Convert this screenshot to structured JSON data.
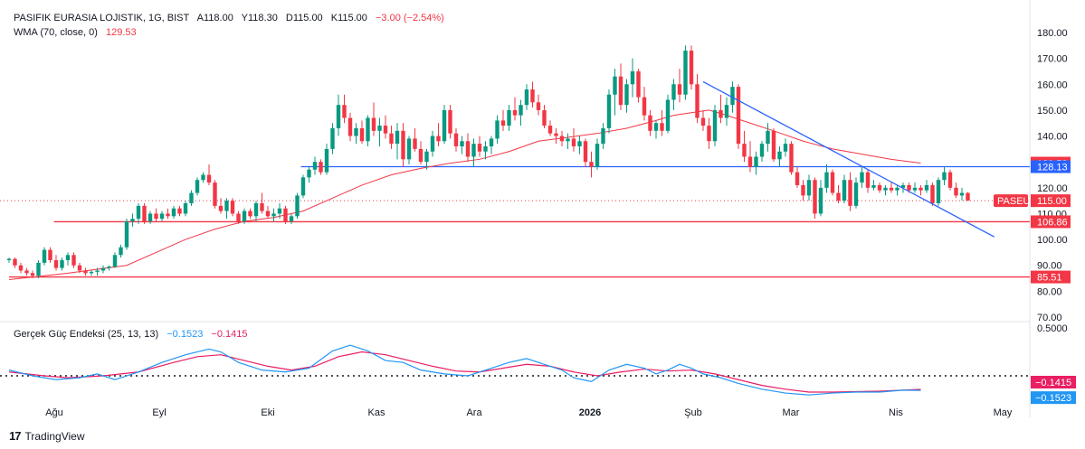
{
  "header": {
    "symbol": "PASIFIK EURASIA LOJISTIK, 1G, BIST",
    "open": "A118.00",
    "high": "Y118.30",
    "low": "D115.00",
    "close": "K115.00",
    "change": "−3.00 (−2.54%)",
    "wma_label": "WMA (70, close, 0)",
    "wma_value": "129.53",
    "tsi_label": "Gerçek Güç Endeksi (25, 13, 13)",
    "tsi_value": "−0.1523",
    "tsi_signal": "−0.1415"
  },
  "footer": {
    "brand": "TradingView",
    "logo": "17"
  },
  "colors": {
    "up": "#089981",
    "down": "#f23645",
    "wma": "#f23645",
    "hline_blue": "#2962ff",
    "hline_red": "#f23645",
    "tsi": "#2196f3",
    "tsi_signal": "#e91e63"
  },
  "chart_data": {
    "type": "candlestick",
    "title": "PASIFIK EURASIA LOJISTIK, 1G, BIST",
    "ylim": [
      70,
      185
    ],
    "y_ticks": [
      "70.00",
      "80.00",
      "90.00",
      "100.00",
      "110.00",
      "120.00",
      "130.00",
      "140.00",
      "150.00",
      "160.00",
      "170.00",
      "180.00"
    ],
    "x_ticks": [
      "Ağu",
      "Eyl",
      "Eki",
      "Kas",
      "Ara",
      "2026",
      "Şub",
      "Mar",
      "Nis",
      "May"
    ],
    "candles": [
      [
        92,
        93,
        91,
        92.5
      ],
      [
        92.5,
        93,
        89,
        90
      ],
      [
        90,
        91,
        87,
        88
      ],
      [
        88,
        89,
        86,
        87
      ],
      [
        87,
        88,
        85,
        86
      ],
      [
        86,
        92,
        85,
        91
      ],
      [
        91,
        97,
        90,
        96
      ],
      [
        96,
        97,
        91,
        92
      ],
      [
        92,
        94,
        88,
        89
      ],
      [
        89,
        93,
        88,
        92
      ],
      [
        92,
        95,
        90,
        94
      ],
      [
        94,
        95,
        89,
        90
      ],
      [
        90,
        91,
        87,
        88
      ],
      [
        88,
        89,
        86,
        87
      ],
      [
        87,
        88,
        86,
        87.5
      ],
      [
        87.5,
        89,
        86,
        88
      ],
      [
        88,
        90,
        87,
        89
      ],
      [
        89,
        90,
        88,
        89.5
      ],
      [
        89.5,
        95,
        89,
        94
      ],
      [
        94,
        98,
        93,
        97
      ],
      [
        97,
        108,
        96,
        107
      ],
      [
        107,
        110,
        105,
        108
      ],
      [
        108,
        114,
        106,
        113
      ],
      [
        113,
        114,
        106,
        107
      ],
      [
        107,
        111,
        106,
        110
      ],
      [
        110,
        112,
        107,
        108
      ],
      [
        108,
        111,
        107,
        110
      ],
      [
        110,
        112,
        108,
        109
      ],
      [
        109,
        113,
        108,
        112
      ],
      [
        112,
        113,
        109,
        110
      ],
      [
        110,
        115,
        109,
        114
      ],
      [
        114,
        119,
        113,
        118
      ],
      [
        118,
        124,
        117,
        123
      ],
      [
        123,
        126,
        122,
        125
      ],
      [
        125,
        129,
        121,
        122
      ],
      [
        122,
        123,
        112,
        113
      ],
      [
        113,
        116,
        110,
        111
      ],
      [
        111,
        116,
        108,
        115
      ],
      [
        115,
        116,
        109,
        110
      ],
      [
        110,
        111,
        106,
        107
      ],
      [
        107,
        112,
        106,
        111
      ],
      [
        111,
        112,
        108,
        109
      ],
      [
        109,
        115,
        107,
        114
      ],
      [
        114,
        118,
        110,
        111
      ],
      [
        111,
        113,
        108,
        109
      ],
      [
        109,
        112,
        107,
        110
      ],
      [
        110,
        114,
        108,
        112
      ],
      [
        112,
        113,
        106,
        107
      ],
      [
        107,
        110,
        106,
        109
      ],
      [
        109,
        118,
        108,
        117
      ],
      [
        117,
        125,
        116,
        124
      ],
      [
        124,
        128,
        122,
        127
      ],
      [
        127,
        132,
        125,
        130
      ],
      [
        130,
        131,
        125,
        126
      ],
      [
        126,
        137,
        125,
        135
      ],
      [
        135,
        145,
        133,
        143
      ],
      [
        143,
        156,
        140,
        152
      ],
      [
        152,
        156,
        145,
        147
      ],
      [
        147,
        149,
        138,
        140
      ],
      [
        140,
        145,
        137,
        143
      ],
      [
        143,
        146,
        137,
        138
      ],
      [
        138,
        148,
        136,
        147
      ],
      [
        147,
        153,
        140,
        142
      ],
      [
        142,
        147,
        136,
        144
      ],
      [
        144,
        148,
        139,
        141
      ],
      [
        141,
        144,
        135,
        137
      ],
      [
        137,
        145,
        131,
        142
      ],
      [
        142,
        145,
        128,
        131
      ],
      [
        131,
        140,
        129,
        139
      ],
      [
        139,
        143,
        134,
        135
      ],
      [
        135,
        138,
        129,
        130
      ],
      [
        130,
        135,
        127,
        134
      ],
      [
        134,
        142,
        132,
        140
      ],
      [
        140,
        145,
        136,
        138
      ],
      [
        138,
        152,
        137,
        150
      ],
      [
        150,
        152,
        139,
        141
      ],
      [
        141,
        143,
        134,
        136
      ],
      [
        136,
        140,
        133,
        138
      ],
      [
        138,
        141,
        130,
        132
      ],
      [
        132,
        139,
        128,
        137
      ],
      [
        137,
        140,
        132,
        134
      ],
      [
        134,
        138,
        131,
        136
      ],
      [
        136,
        140,
        133,
        139
      ],
      [
        139,
        148,
        137,
        146
      ],
      [
        146,
        150,
        142,
        144
      ],
      [
        144,
        152,
        142,
        150
      ],
      [
        150,
        155,
        146,
        148
      ],
      [
        148,
        154,
        144,
        152
      ],
      [
        152,
        160,
        150,
        158
      ],
      [
        158,
        161,
        151,
        153
      ],
      [
        153,
        156,
        148,
        150
      ],
      [
        150,
        152,
        143,
        144
      ],
      [
        144,
        146,
        140,
        141
      ],
      [
        141,
        143,
        137,
        140
      ],
      [
        140,
        142,
        136,
        138
      ],
      [
        138,
        141,
        135,
        139
      ],
      [
        139,
        143,
        134,
        136
      ],
      [
        136,
        140,
        133,
        138
      ],
      [
        138,
        139,
        128,
        130
      ],
      [
        130,
        134,
        124,
        128
      ],
      [
        128,
        139,
        127,
        137
      ],
      [
        137,
        145,
        135,
        143
      ],
      [
        143,
        158,
        141,
        156
      ],
      [
        156,
        166,
        148,
        163
      ],
      [
        163,
        168,
        150,
        152
      ],
      [
        152,
        162,
        149,
        160
      ],
      [
        160,
        170,
        155,
        165
      ],
      [
        165,
        166,
        153,
        155
      ],
      [
        155,
        159,
        146,
        148
      ],
      [
        148,
        150,
        140,
        142
      ],
      [
        142,
        146,
        139,
        145
      ],
      [
        145,
        150,
        140,
        142
      ],
      [
        142,
        156,
        141,
        154
      ],
      [
        154,
        162,
        150,
        160
      ],
      [
        160,
        166,
        153,
        156
      ],
      [
        156,
        175,
        154,
        173
      ],
      [
        173,
        175,
        158,
        160
      ],
      [
        160,
        164,
        145,
        147
      ],
      [
        147,
        150,
        142,
        144
      ],
      [
        144,
        147,
        135,
        138
      ],
      [
        138,
        152,
        136,
        150
      ],
      [
        150,
        156,
        145,
        147
      ],
      [
        147,
        155,
        144,
        152
      ],
      [
        152,
        161,
        149,
        159
      ],
      [
        159,
        160,
        135,
        137
      ],
      [
        137,
        142,
        130,
        132
      ],
      [
        132,
        138,
        126,
        128
      ],
      [
        128,
        134,
        125,
        132
      ],
      [
        132,
        138,
        130,
        137
      ],
      [
        137,
        145,
        134,
        142
      ],
      [
        142,
        143,
        130,
        131
      ],
      [
        131,
        136,
        128,
        134
      ],
      [
        134,
        139,
        132,
        137
      ],
      [
        137,
        138,
        125,
        126
      ],
      [
        126,
        128,
        120,
        121
      ],
      [
        121,
        123,
        115,
        117
      ],
      [
        117,
        125,
        115,
        123
      ],
      [
        123,
        124,
        108,
        110
      ],
      [
        110,
        123,
        109,
        120
      ],
      [
        120,
        129,
        118,
        126
      ],
      [
        126,
        127,
        117,
        118
      ],
      [
        118,
        121,
        114,
        115
      ],
      [
        115,
        125,
        114,
        123
      ],
      [
        123,
        126,
        111,
        113
      ],
      [
        113,
        124,
        112,
        122
      ],
      [
        122,
        128,
        120,
        126
      ],
      [
        126,
        127,
        118,
        120
      ],
      [
        120,
        123,
        119,
        121
      ],
      [
        121,
        122,
        118,
        119
      ],
      [
        119,
        121,
        117,
        120
      ],
      [
        120,
        122,
        118,
        119
      ],
      [
        119,
        121,
        117,
        120
      ],
      [
        120,
        122,
        118,
        121
      ],
      [
        121,
        122,
        118,
        119
      ],
      [
        119,
        122,
        118,
        120
      ],
      [
        120,
        121,
        117,
        119
      ],
      [
        119,
        123,
        118,
        121
      ],
      [
        121,
        122,
        113,
        114
      ],
      [
        114,
        124,
        113,
        123
      ],
      [
        123,
        128,
        121,
        126
      ],
      [
        126,
        127,
        119,
        120
      ],
      [
        120,
        122,
        116,
        117
      ],
      [
        117,
        120,
        115,
        118
      ],
      [
        118,
        118.3,
        115,
        115
      ]
    ],
    "wma": [
      [
        0,
        84.5
      ],
      [
        10,
        87
      ],
      [
        20,
        90
      ],
      [
        25,
        95
      ],
      [
        30,
        100
      ],
      [
        35,
        104
      ],
      [
        40,
        107
      ],
      [
        45,
        108.5
      ],
      [
        50,
        111
      ],
      [
        55,
        116
      ],
      [
        60,
        121
      ],
      [
        65,
        125
      ],
      [
        70,
        127.5
      ],
      [
        75,
        129.5
      ],
      [
        80,
        131
      ],
      [
        85,
        134
      ],
      [
        90,
        138
      ],
      [
        95,
        139.5
      ],
      [
        100,
        141
      ],
      [
        105,
        143
      ],
      [
        110,
        146
      ],
      [
        113,
        148
      ],
      [
        116,
        149
      ],
      [
        119,
        150
      ],
      [
        122,
        148
      ],
      [
        126,
        145
      ],
      [
        130,
        142
      ],
      [
        135,
        138
      ],
      [
        140,
        135
      ],
      [
        145,
        133
      ],
      [
        150,
        131
      ],
      [
        155,
        129.53
      ]
    ],
    "hlines": [
      {
        "label": "128.13",
        "value": 128.13,
        "x_start_index": 25,
        "color": "#2962ff"
      },
      {
        "label": "106.86",
        "value": 106.86,
        "x_start_index": 3,
        "color": "#f23645"
      },
      {
        "label": "85.51",
        "value": 85.51,
        "x_start_index": 0,
        "color": "#f23645"
      }
    ],
    "trendline": {
      "from": [
        118,
        161
      ],
      "to_date_index": 167.5,
      "to_value": 101,
      "color": "#2962ff"
    },
    "price_labels": [
      {
        "text": "129.53",
        "value": 129.53,
        "color": "#f23645"
      },
      {
        "text": "128.13",
        "value": 128.13,
        "color": "#2962ff"
      },
      {
        "text": "115.00",
        "value": 115,
        "color": "#f23645",
        "tag": "PASEU"
      },
      {
        "text": "106.86",
        "value": 106.86,
        "color": "#f23645"
      },
      {
        "text": "85.51",
        "value": 85.51,
        "color": "#f23645"
      }
    ],
    "tsi": {
      "title": "Gerçek Güç Endeksi (25, 13, 13)",
      "ylim": [
        -0.25,
        0.55
      ],
      "y_ticks": [
        "0.5000"
      ],
      "zero_line": 0,
      "tsi": [
        [
          0,
          0.06
        ],
        [
          4,
          0.0
        ],
        [
          8,
          -0.04
        ],
        [
          12,
          -0.02
        ],
        [
          15,
          0.02
        ],
        [
          18,
          -0.04
        ],
        [
          22,
          0.04
        ],
        [
          26,
          0.14
        ],
        [
          30,
          0.22
        ],
        [
          34,
          0.28
        ],
        [
          36,
          0.25
        ],
        [
          39,
          0.14
        ],
        [
          43,
          0.06
        ],
        [
          47,
          0.04
        ],
        [
          51,
          0.08
        ],
        [
          55,
          0.26
        ],
        [
          58,
          0.32
        ],
        [
          61,
          0.26
        ],
        [
          64,
          0.16
        ],
        [
          67,
          0.14
        ],
        [
          70,
          0.06
        ],
        [
          74,
          0.02
        ],
        [
          78,
          0.0
        ],
        [
          81,
          0.06
        ],
        [
          85,
          0.14
        ],
        [
          88,
          0.18
        ],
        [
          91,
          0.12
        ],
        [
          94,
          0.06
        ],
        [
          96,
          -0.02
        ],
        [
          99,
          -0.06
        ],
        [
          102,
          0.06
        ],
        [
          105,
          0.12
        ],
        [
          108,
          0.08
        ],
        [
          110,
          0.02
        ],
        [
          112,
          0.06
        ],
        [
          114,
          0.12
        ],
        [
          116,
          0.08
        ],
        [
          118,
          0.02
        ],
        [
          121,
          -0.02
        ],
        [
          124,
          -0.08
        ],
        [
          128,
          -0.14
        ],
        [
          132,
          -0.18
        ],
        [
          136,
          -0.2
        ],
        [
          140,
          -0.18
        ],
        [
          144,
          -0.17
        ],
        [
          148,
          -0.17
        ],
        [
          152,
          -0.15
        ],
        [
          155,
          -0.1523
        ]
      ],
      "signal": [
        [
          0,
          0.04
        ],
        [
          6,
          0.0
        ],
        [
          10,
          -0.02
        ],
        [
          16,
          0.0
        ],
        [
          22,
          0.04
        ],
        [
          28,
          0.14
        ],
        [
          32,
          0.2
        ],
        [
          36,
          0.22
        ],
        [
          40,
          0.16
        ],
        [
          44,
          0.1
        ],
        [
          48,
          0.06
        ],
        [
          52,
          0.1
        ],
        [
          56,
          0.2
        ],
        [
          60,
          0.25
        ],
        [
          64,
          0.22
        ],
        [
          68,
          0.16
        ],
        [
          72,
          0.1
        ],
        [
          76,
          0.05
        ],
        [
          80,
          0.04
        ],
        [
          84,
          0.08
        ],
        [
          88,
          0.12
        ],
        [
          92,
          0.1
        ],
        [
          96,
          0.04
        ],
        [
          100,
          0.0
        ],
        [
          104,
          0.04
        ],
        [
          108,
          0.07
        ],
        [
          112,
          0.05
        ],
        [
          116,
          0.06
        ],
        [
          120,
          0.02
        ],
        [
          124,
          -0.04
        ],
        [
          128,
          -0.1
        ],
        [
          132,
          -0.14
        ],
        [
          136,
          -0.17
        ],
        [
          140,
          -0.17
        ],
        [
          144,
          -0.165
        ],
        [
          148,
          -0.16
        ],
        [
          152,
          -0.15
        ],
        [
          155,
          -0.1415
        ]
      ],
      "labels": [
        {
          "text": "−0.1415",
          "value": -0.1415,
          "color": "#e91e63"
        },
        {
          "text": "−0.1523",
          "value": -0.1523,
          "color": "#2196f3"
        }
      ]
    }
  }
}
